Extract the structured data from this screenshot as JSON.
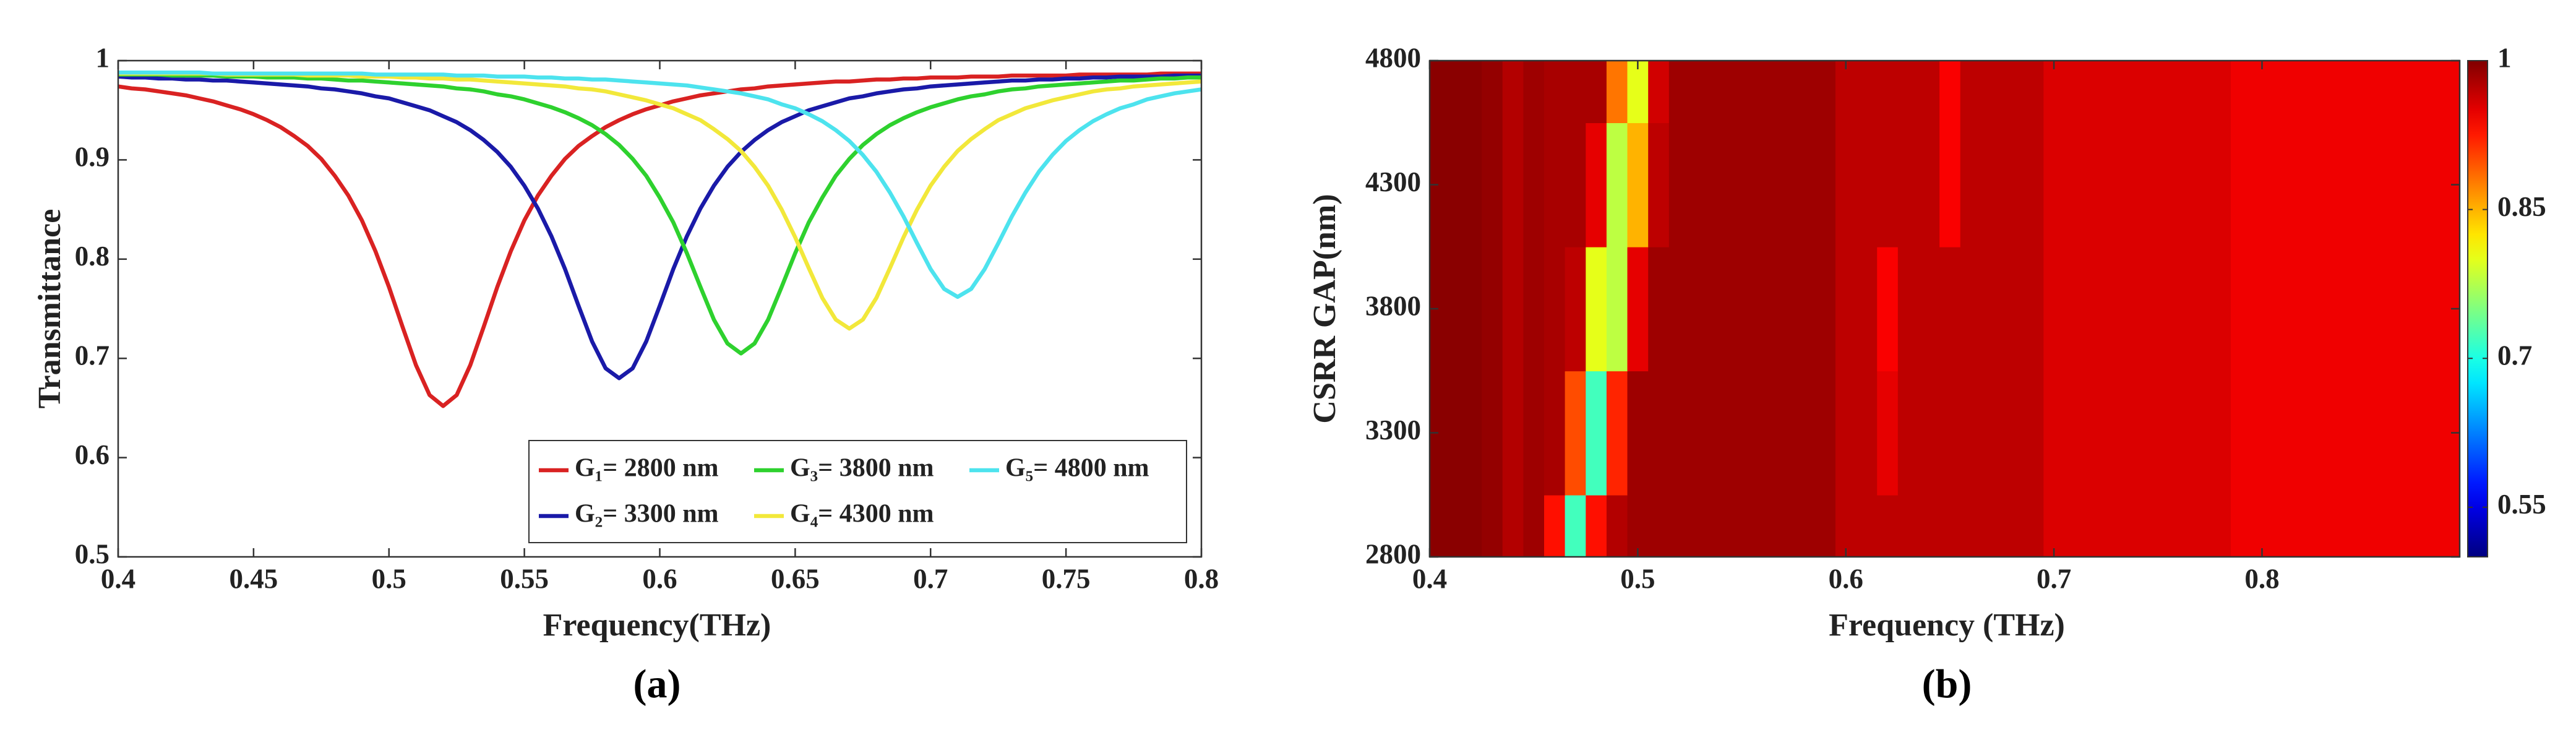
{
  "chart_data": [
    {
      "type": "line",
      "xlabel": "Frequency(THz)",
      "ylabel": "Transmittance",
      "caption": "(a)",
      "x": [
        0.4,
        0.405,
        0.41,
        0.415,
        0.42,
        0.425,
        0.43,
        0.435,
        0.44,
        0.445,
        0.45,
        0.455,
        0.46,
        0.465,
        0.47,
        0.475,
        0.48,
        0.485,
        0.49,
        0.495,
        0.5,
        0.505,
        0.51,
        0.515,
        0.52,
        0.525,
        0.53,
        0.535,
        0.54,
        0.545,
        0.55,
        0.555,
        0.56,
        0.565,
        0.57,
        0.575,
        0.58,
        0.585,
        0.59,
        0.595,
        0.6,
        0.605,
        0.61,
        0.615,
        0.62,
        0.625,
        0.63,
        0.635,
        0.64,
        0.645,
        0.65,
        0.655,
        0.66,
        0.665,
        0.67,
        0.675,
        0.68,
        0.685,
        0.69,
        0.695,
        0.7,
        0.705,
        0.71,
        0.715,
        0.72,
        0.725,
        0.73,
        0.735,
        0.74,
        0.745,
        0.75,
        0.755,
        0.76,
        0.765,
        0.77,
        0.775,
        0.78,
        0.785,
        0.79,
        0.795,
        0.8
      ],
      "series": [
        {
          "name": "G₁= 2800 nm",
          "color": "#d92222",
          "values": [
            0.974,
            0.972,
            0.971,
            0.969,
            0.967,
            0.965,
            0.962,
            0.959,
            0.955,
            0.951,
            0.946,
            0.94,
            0.933,
            0.924,
            0.914,
            0.901,
            0.884,
            0.864,
            0.839,
            0.808,
            0.772,
            0.732,
            0.693,
            0.663,
            0.652,
            0.663,
            0.693,
            0.732,
            0.772,
            0.808,
            0.839,
            0.864,
            0.884,
            0.901,
            0.914,
            0.924,
            0.933,
            0.94,
            0.946,
            0.951,
            0.955,
            0.959,
            0.962,
            0.965,
            0.967,
            0.969,
            0.971,
            0.972,
            0.974,
            0.975,
            0.976,
            0.977,
            0.978,
            0.979,
            0.979,
            0.98,
            0.981,
            0.981,
            0.982,
            0.982,
            0.983,
            0.983,
            0.983,
            0.984,
            0.984,
            0.984,
            0.985,
            0.985,
            0.985,
            0.985,
            0.985,
            0.986,
            0.986,
            0.986,
            0.986,
            0.986,
            0.986,
            0.987,
            0.987,
            0.987,
            0.987
          ]
        },
        {
          "name": "G₂= 3300 nm",
          "color": "#1a1aa8",
          "values": [
            0.984,
            0.983,
            0.983,
            0.982,
            0.982,
            0.981,
            0.981,
            0.98,
            0.98,
            0.979,
            0.978,
            0.977,
            0.976,
            0.975,
            0.974,
            0.972,
            0.971,
            0.969,
            0.967,
            0.964,
            0.962,
            0.958,
            0.954,
            0.95,
            0.944,
            0.938,
            0.93,
            0.92,
            0.908,
            0.893,
            0.874,
            0.851,
            0.823,
            0.79,
            0.753,
            0.717,
            0.69,
            0.68,
            0.69,
            0.717,
            0.753,
            0.79,
            0.823,
            0.851,
            0.874,
            0.893,
            0.908,
            0.92,
            0.93,
            0.938,
            0.944,
            0.95,
            0.954,
            0.958,
            0.962,
            0.964,
            0.967,
            0.969,
            0.971,
            0.972,
            0.974,
            0.975,
            0.976,
            0.977,
            0.978,
            0.979,
            0.98,
            0.98,
            0.981,
            0.981,
            0.982,
            0.982,
            0.983,
            0.983,
            0.984,
            0.984,
            0.984,
            0.984,
            0.985,
            0.985,
            0.985
          ]
        },
        {
          "name": "G₃= 3800 nm",
          "color": "#2ed12e",
          "values": [
            0.986,
            0.986,
            0.986,
            0.986,
            0.985,
            0.985,
            0.985,
            0.985,
            0.984,
            0.984,
            0.984,
            0.983,
            0.983,
            0.983,
            0.982,
            0.982,
            0.981,
            0.98,
            0.98,
            0.979,
            0.978,
            0.977,
            0.976,
            0.975,
            0.974,
            0.972,
            0.971,
            0.969,
            0.966,
            0.964,
            0.961,
            0.957,
            0.953,
            0.948,
            0.942,
            0.935,
            0.926,
            0.915,
            0.901,
            0.884,
            0.862,
            0.837,
            0.806,
            0.772,
            0.739,
            0.715,
            0.705,
            0.715,
            0.739,
            0.772,
            0.806,
            0.837,
            0.862,
            0.884,
            0.901,
            0.915,
            0.926,
            0.935,
            0.942,
            0.948,
            0.953,
            0.957,
            0.961,
            0.964,
            0.966,
            0.969,
            0.971,
            0.972,
            0.974,
            0.975,
            0.976,
            0.977,
            0.978,
            0.979,
            0.98,
            0.98,
            0.981,
            0.982,
            0.982,
            0.983,
            0.983
          ]
        },
        {
          "name": "G₄= 4300 nm",
          "color": "#f2e83a",
          "values": [
            0.987,
            0.987,
            0.987,
            0.987,
            0.987,
            0.987,
            0.987,
            0.987,
            0.986,
            0.986,
            0.986,
            0.986,
            0.986,
            0.986,
            0.985,
            0.985,
            0.985,
            0.985,
            0.984,
            0.984,
            0.984,
            0.983,
            0.983,
            0.982,
            0.982,
            0.981,
            0.981,
            0.98,
            0.979,
            0.978,
            0.977,
            0.976,
            0.975,
            0.974,
            0.972,
            0.971,
            0.969,
            0.966,
            0.963,
            0.96,
            0.956,
            0.952,
            0.946,
            0.94,
            0.931,
            0.921,
            0.909,
            0.893,
            0.874,
            0.85,
            0.822,
            0.791,
            0.761,
            0.739,
            0.73,
            0.739,
            0.761,
            0.791,
            0.822,
            0.85,
            0.874,
            0.893,
            0.909,
            0.921,
            0.931,
            0.94,
            0.946,
            0.952,
            0.956,
            0.96,
            0.963,
            0.966,
            0.969,
            0.971,
            0.972,
            0.974,
            0.975,
            0.976,
            0.977,
            0.978,
            0.979
          ]
        },
        {
          "name": "G₅= 4800 nm",
          "color": "#4de3ee",
          "values": [
            0.988,
            0.988,
            0.988,
            0.988,
            0.988,
            0.988,
            0.988,
            0.987,
            0.987,
            0.987,
            0.987,
            0.987,
            0.987,
            0.987,
            0.987,
            0.987,
            0.987,
            0.987,
            0.987,
            0.986,
            0.986,
            0.986,
            0.986,
            0.986,
            0.986,
            0.985,
            0.985,
            0.985,
            0.984,
            0.984,
            0.984,
            0.983,
            0.983,
            0.982,
            0.982,
            0.981,
            0.981,
            0.98,
            0.979,
            0.978,
            0.977,
            0.976,
            0.975,
            0.973,
            0.971,
            0.969,
            0.967,
            0.964,
            0.961,
            0.956,
            0.952,
            0.946,
            0.939,
            0.93,
            0.919,
            0.905,
            0.888,
            0.867,
            0.843,
            0.816,
            0.79,
            0.77,
            0.762,
            0.77,
            0.79,
            0.816,
            0.843,
            0.867,
            0.888,
            0.905,
            0.919,
            0.93,
            0.939,
            0.946,
            0.952,
            0.956,
            0.961,
            0.964,
            0.967,
            0.969,
            0.971
          ]
        }
      ],
      "xlim": [
        0.4,
        0.8
      ],
      "xticks": [
        0.4,
        0.45,
        0.5,
        0.55,
        0.6,
        0.65,
        0.7,
        0.75,
        0.8
      ],
      "ylim": [
        0.5,
        1
      ],
      "yticks": [
        0.5,
        0.6,
        0.7,
        0.8,
        0.9,
        1
      ],
      "legend": "lower right"
    },
    {
      "type": "heatmap",
      "xlabel": "Frequency (THz)",
      "ylabel": "CSRR GAP(nm)",
      "caption": "(b)",
      "x": [
        0.4,
        0.41,
        0.42,
        0.43,
        0.44,
        0.45,
        0.46,
        0.47,
        0.48,
        0.49,
        0.5,
        0.51,
        0.52,
        0.53,
        0.54,
        0.55,
        0.56,
        0.57,
        0.58,
        0.59,
        0.6,
        0.61,
        0.62,
        0.63,
        0.64,
        0.65,
        0.66,
        0.67,
        0.68,
        0.69,
        0.7,
        0.71,
        0.72,
        0.73,
        0.74,
        0.75,
        0.76,
        0.77,
        0.78,
        0.79,
        0.8,
        0.81,
        0.82,
        0.83,
        0.84,
        0.85,
        0.86,
        0.87,
        0.88,
        0.89
      ],
      "y": [
        2800,
        3300,
        3800,
        4300,
        4800
      ],
      "z": [
        [
          0.995,
          0.995,
          0.995,
          0.99,
          0.975,
          0.985,
          0.93,
          0.72,
          0.93,
          0.975,
          0.985,
          0.985,
          0.985,
          0.985,
          0.985,
          0.985,
          0.985,
          0.985,
          0.985,
          0.985,
          0.97,
          0.97,
          0.97,
          0.97,
          0.97,
          0.97,
          0.97,
          0.97,
          0.97,
          0.97,
          0.955,
          0.955,
          0.955,
          0.955,
          0.955,
          0.955,
          0.955,
          0.955,
          0.955,
          0.945,
          0.945,
          0.945,
          0.945,
          0.945,
          0.945,
          0.945,
          0.945,
          0.945,
          0.945,
          0.945
        ],
        [
          0.995,
          0.995,
          0.995,
          0.99,
          0.975,
          0.985,
          0.98,
          0.9,
          0.72,
          0.92,
          0.985,
          0.985,
          0.985,
          0.985,
          0.985,
          0.985,
          0.985,
          0.985,
          0.985,
          0.985,
          0.97,
          0.97,
          0.95,
          0.97,
          0.97,
          0.97,
          0.97,
          0.97,
          0.97,
          0.97,
          0.955,
          0.955,
          0.955,
          0.955,
          0.955,
          0.955,
          0.955,
          0.955,
          0.955,
          0.945,
          0.945,
          0.945,
          0.945,
          0.945,
          0.945,
          0.945,
          0.945,
          0.945,
          0.945,
          0.945
        ],
        [
          0.995,
          0.995,
          0.995,
          0.99,
          0.975,
          0.985,
          0.98,
          0.97,
          0.8,
          0.78,
          0.95,
          0.985,
          0.985,
          0.985,
          0.985,
          0.985,
          0.985,
          0.985,
          0.985,
          0.985,
          0.97,
          0.97,
          0.94,
          0.97,
          0.97,
          0.97,
          0.97,
          0.97,
          0.97,
          0.97,
          0.955,
          0.955,
          0.955,
          0.955,
          0.955,
          0.955,
          0.955,
          0.955,
          0.955,
          0.945,
          0.945,
          0.945,
          0.945,
          0.945,
          0.945,
          0.945,
          0.945,
          0.945,
          0.945,
          0.945
        ],
        [
          0.995,
          0.995,
          0.995,
          0.99,
          0.975,
          0.985,
          0.98,
          0.98,
          0.95,
          0.78,
          0.85,
          0.97,
          0.985,
          0.985,
          0.985,
          0.985,
          0.985,
          0.985,
          0.985,
          0.985,
          0.97,
          0.97,
          0.97,
          0.97,
          0.97,
          0.94,
          0.97,
          0.97,
          0.97,
          0.97,
          0.955,
          0.955,
          0.955,
          0.955,
          0.955,
          0.955,
          0.955,
          0.955,
          0.955,
          0.945,
          0.945,
          0.945,
          0.945,
          0.945,
          0.945,
          0.945,
          0.945,
          0.945,
          0.945,
          0.945
        ],
        [
          0.995,
          0.995,
          0.995,
          0.99,
          0.975,
          0.985,
          0.98,
          0.98,
          0.98,
          0.88,
          0.8,
          0.96,
          0.985,
          0.985,
          0.985,
          0.985,
          0.985,
          0.985,
          0.985,
          0.985,
          0.97,
          0.97,
          0.97,
          0.97,
          0.97,
          0.94,
          0.97,
          0.97,
          0.97,
          0.97,
          0.955,
          0.955,
          0.955,
          0.955,
          0.955,
          0.955,
          0.955,
          0.955,
          0.955,
          0.945,
          0.945,
          0.945,
          0.945,
          0.945,
          0.945,
          0.945,
          0.945,
          0.945,
          0.945,
          0.945
        ]
      ],
      "xlim": [
        0.4,
        0.895
      ],
      "xticks": [
        0.4,
        0.5,
        0.6,
        0.7,
        0.8
      ],
      "ylim": [
        2800,
        4800
      ],
      "yticks": [
        2800,
        3300,
        3800,
        4300,
        4800
      ],
      "colormap": "jet",
      "clim": [
        0.5,
        1
      ],
      "cticks": [
        0.55,
        0.7,
        0.85,
        1
      ]
    }
  ]
}
